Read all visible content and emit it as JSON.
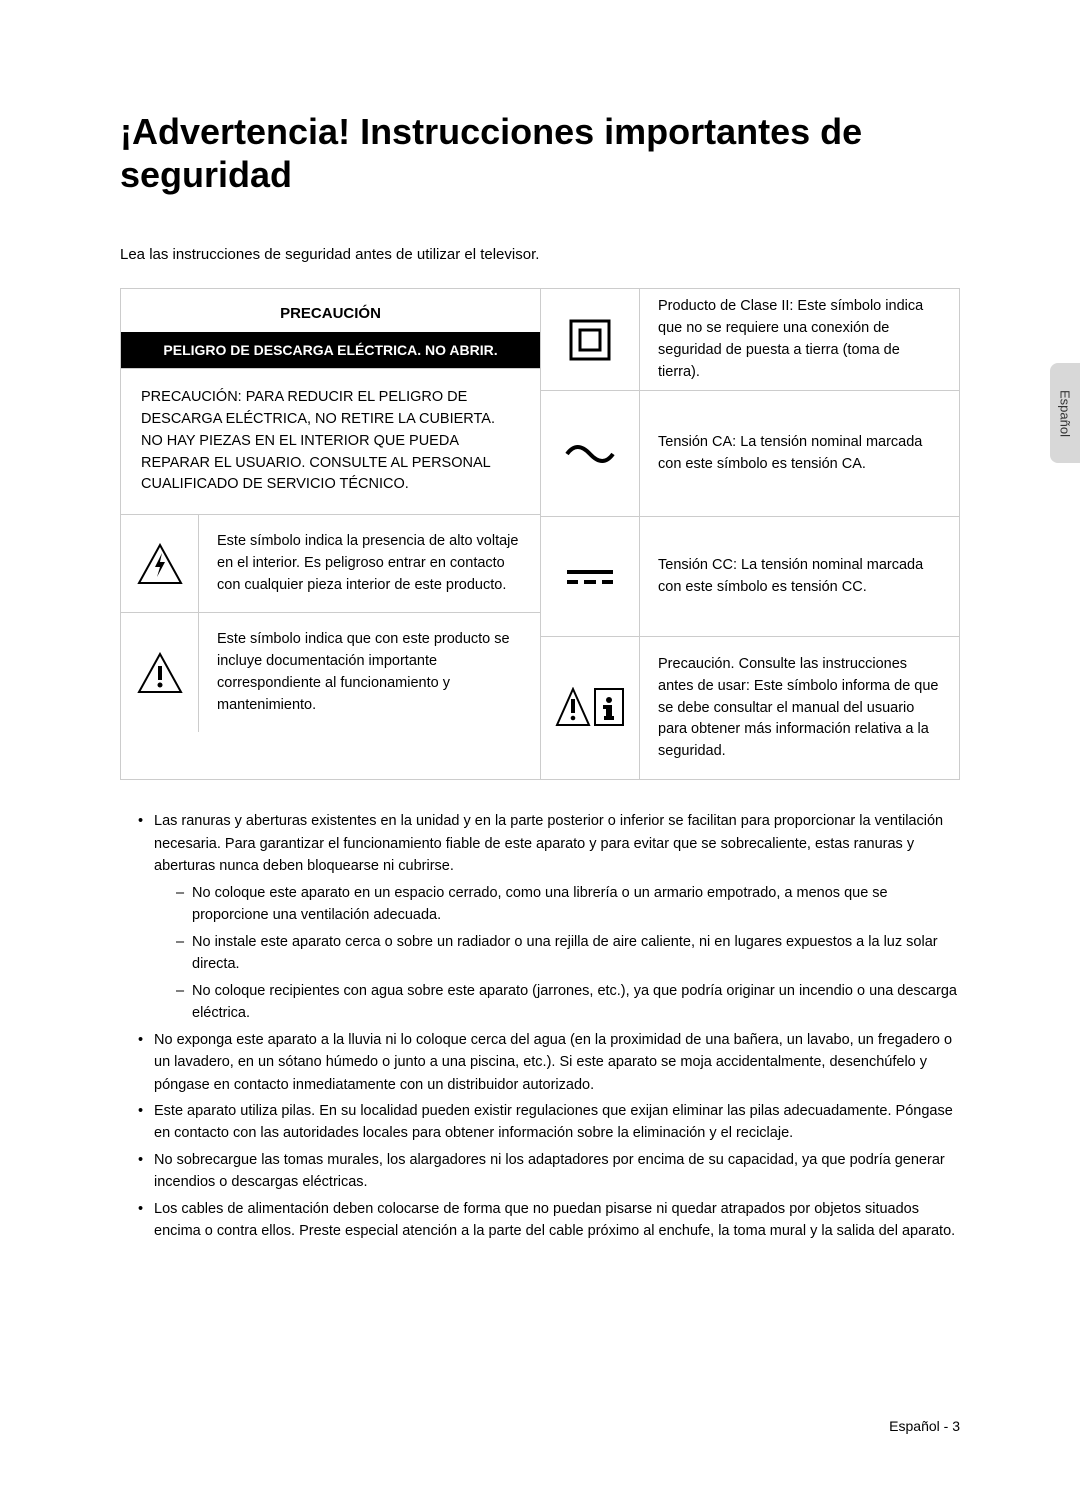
{
  "title": "¡Advertencia! Instrucciones importantes de seguridad",
  "intro": "Lea las instrucciones de seguridad antes de utilizar el televisor.",
  "table": {
    "header_top": "PRECAUCIÓN",
    "header_bottom": "PELIGRO DE DESCARGA ELÉCTRICA. NO ABRIR.",
    "left_row1": "PRECAUCIÓN: PARA REDUCIR EL PELIGRO DE DESCARGA ELÉCTRICA, NO RETIRE LA CUBIERTA. NO HAY PIEZAS EN EL INTERIOR QUE PUEDA REPARAR EL USUARIO. CONSULTE AL PERSONAL CUALIFICADO DE SERVICIO TÉCNICO.",
    "left_row2": "Este símbolo indica la presencia de alto voltaje en el interior. Es peligroso entrar en contacto con cualquier pieza interior de este producto.",
    "left_row3": "Este símbolo indica que con este producto se incluye documentación importante correspondiente al funcionamiento y mantenimiento.",
    "right_row1": "Producto de Clase II: Este símbolo indica que no se requiere una conexión de seguridad de puesta a tierra (toma de tierra).",
    "right_row2": "Tensión CA: La tensión nominal marcada con este símbolo es tensión CA.",
    "right_row3": "Tensión CC: La tensión nominal marcada con este símbolo es tensión CC.",
    "right_row4": "Precaución. Consulte las instrucciones antes de usar: Este símbolo informa de que se debe consultar el manual del usuario para obtener más información relativa a la seguridad."
  },
  "bullets": [
    {
      "text": "Las ranuras y aberturas existentes en la unidad y en la parte posterior o inferior se facilitan para proporcionar la ventilación necesaria. Para garantizar el funcionamiento fiable de este aparato y para evitar que se sobrecaliente, estas ranuras y aberturas nunca deben bloquearse ni cubrirse.",
      "subs": [
        "No coloque este aparato en un espacio cerrado, como una librería o un armario empotrado, a menos que se proporcione una ventilación adecuada.",
        "No instale este aparato cerca o sobre un radiador o una rejilla de aire caliente, ni en lugares expuestos a la luz solar directa.",
        "No coloque recipientes con agua sobre este aparato (jarrones, etc.), ya que podría originar un incendio o una descarga eléctrica."
      ]
    },
    {
      "text": "No exponga este aparato a la lluvia ni lo coloque cerca del agua (en la proximidad de una bañera, un lavabo, un fregadero o un lavadero, en un sótano húmedo o junto a una piscina, etc.). Si este aparato se moja accidentalmente, desenchúfelo y póngase en contacto inmediatamente con un distribuidor autorizado."
    },
    {
      "text": "Este aparato utiliza pilas. En su localidad pueden existir regulaciones que exijan eliminar las pilas adecuadamente. Póngase en contacto con las autoridades locales para obtener información sobre la eliminación y el reciclaje."
    },
    {
      "text": "No sobrecargue las tomas murales, los alargadores ni los adaptadores por encima de su capacidad, ya que podría generar incendios o descargas eléctricas."
    },
    {
      "text": "Los cables de alimentación deben colocarse de forma que no puedan pisarse ni quedar atrapados por objetos situados encima o contra ellos. Preste especial atención a la parte del cable próximo al enchufe, la toma mural y la salida del aparato."
    }
  ],
  "side_tab": "Español",
  "footer": "Español - 3",
  "row_heights": {
    "r1": 102,
    "r2": 126,
    "r3": 120,
    "r4": 142
  }
}
